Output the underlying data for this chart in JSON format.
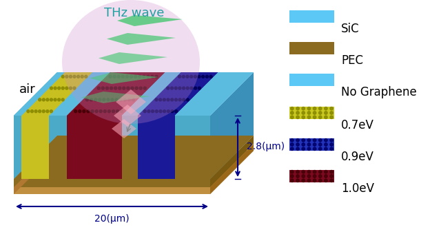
{
  "air_label": "air",
  "wave_label": "THz wave",
  "dim1_label": "2.8(μm)",
  "dim2_label": "20(μm)",
  "legend_items": [
    {
      "label": "SiC",
      "color": "#5BC8F5",
      "type": "solid"
    },
    {
      "label": "PEC",
      "color": "#8B6B20",
      "type": "solid"
    },
    {
      "label": "No Graphene",
      "color": "#5BC8F5",
      "type": "solid"
    },
    {
      "label": "0.7eV",
      "color": "#C8C820",
      "type": "dot_yellow"
    },
    {
      "label": "0.9eV",
      "color": "#2233BB",
      "type": "dot_blue"
    },
    {
      "label": "1.0eV",
      "color": "#7B0A1E",
      "type": "dot_red"
    }
  ],
  "sic_top": "#5BBCDF",
  "sic_side_right": "#3A90B8",
  "sic_front": "#4AAAC8",
  "sic_side_left": "#6BCCE8",
  "pec_front": "#8B6B20",
  "pec_side": "#7A5A10",
  "pec_bottom": "#C09040",
  "stripe_yellow": "#C8C020",
  "stripe_crimson": "#7B0A1E",
  "stripe_navy": "#1A1A99",
  "wave_green": "#50C878",
  "wave_purple": "#CC88CC",
  "wave_pink": "#FFB0C0",
  "dim_color": "#000088"
}
